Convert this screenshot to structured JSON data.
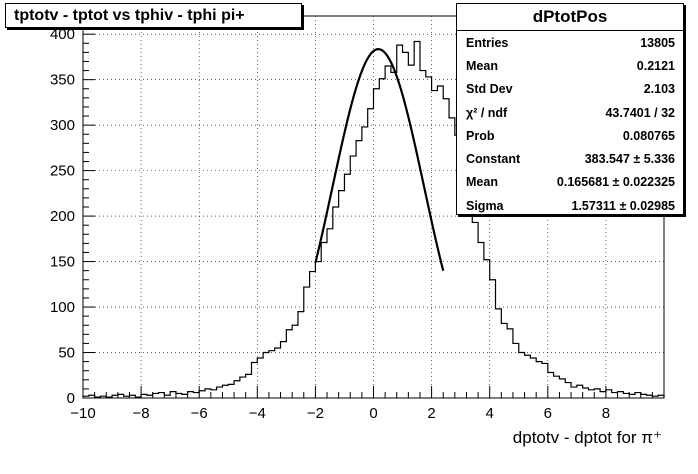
{
  "title": "tptotv - tptot vs tphiv - tphi pi+",
  "stats": {
    "name": "dPtotPos",
    "rows": [
      {
        "label": "Entries",
        "value": "13805"
      },
      {
        "label": "Mean",
        "value": "0.2121"
      },
      {
        "label": "Std Dev",
        "value": "2.103"
      },
      {
        "label": "χ² / ndf",
        "value": "43.7401 / 32"
      },
      {
        "label": "Prob",
        "value": "0.080765"
      },
      {
        "label": "Constant",
        "value": "383.547 ± 5.336"
      },
      {
        "label": "Mean",
        "value": "0.165681 ± 0.022325"
      },
      {
        "label": "Sigma",
        "value": "1.57311 ± 0.02985"
      }
    ]
  },
  "chart_data": {
    "type": "histogram",
    "title": "tptotv - tptot vs tphiv - tphi pi+",
    "xlabel": "dptotv - dptot for π⁺",
    "ylabel": "",
    "xlim": [
      -10,
      10
    ],
    "ylim": [
      0,
      420
    ],
    "bin_width": 0.2,
    "grid": true,
    "xticks": [
      -10,
      -8,
      -6,
      -4,
      -2,
      0,
      2,
      4,
      6,
      8
    ],
    "yticks": [
      0,
      50,
      100,
      150,
      200,
      250,
      300,
      350,
      400
    ],
    "bins_x_start": -10,
    "counts": [
      2,
      3,
      1,
      2,
      1,
      3,
      4,
      2,
      3,
      1,
      4,
      3,
      5,
      6,
      3,
      7,
      5,
      4,
      7,
      6,
      8,
      10,
      9,
      12,
      14,
      15,
      19,
      23,
      26,
      39,
      44,
      50,
      52,
      55,
      62,
      75,
      80,
      95,
      122,
      139,
      150,
      171,
      186,
      210,
      228,
      246,
      266,
      283,
      298,
      318,
      340,
      351,
      365,
      358,
      388,
      380,
      366,
      392,
      360,
      353,
      338,
      343,
      329,
      308,
      289,
      249,
      218,
      193,
      171,
      152,
      130,
      98,
      82,
      76,
      60,
      50,
      47,
      44,
      40,
      38,
      28,
      24,
      21,
      17,
      12,
      14,
      11,
      9,
      10,
      7,
      9,
      6,
      7,
      5,
      4,
      6,
      4,
      3,
      2,
      3
    ],
    "fit": {
      "function": "gaus",
      "constant": 383.547,
      "mean": 0.165681,
      "sigma": 1.57311,
      "range": [
        -2,
        2.4
      ]
    },
    "stats_box_position": "top-right"
  }
}
